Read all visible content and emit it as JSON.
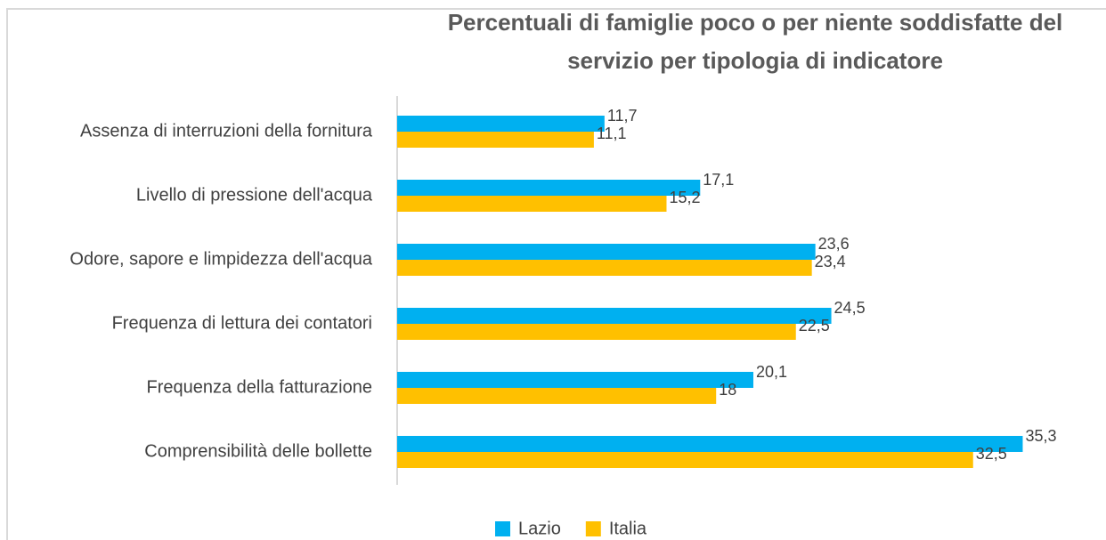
{
  "chart_data": {
    "type": "bar",
    "orientation": "horizontal",
    "title": "Percentuali di famiglie poco o per niente soddisfatte del servizio per tipologia di indicatore",
    "categories": [
      "Assenza di interruzioni della fornitura",
      "Livello di pressione dell'acqua",
      "Odore, sapore e limpidezza dell'acqua",
      "Frequenza di lettura dei contatori",
      "Frequenza della fatturazione",
      "Comprensibilità delle bollette"
    ],
    "series": [
      {
        "name": "Lazio",
        "color": "#00b0f0",
        "values": [
          11.7,
          17.1,
          23.6,
          24.5,
          20.1,
          35.3
        ],
        "value_labels": [
          "11,7",
          "17,1",
          "23,6",
          "24,5",
          "20,1",
          "35,3"
        ]
      },
      {
        "name": "Italia",
        "color": "#ffc000",
        "values": [
          11.1,
          15.2,
          23.4,
          22.5,
          18,
          32.5
        ],
        "value_labels": [
          "11,1",
          "15,2",
          "23,4",
          "22,5",
          "18",
          "32,5"
        ]
      }
    ],
    "xlim": [
      0,
      40
    ],
    "legend": "bottom"
  }
}
